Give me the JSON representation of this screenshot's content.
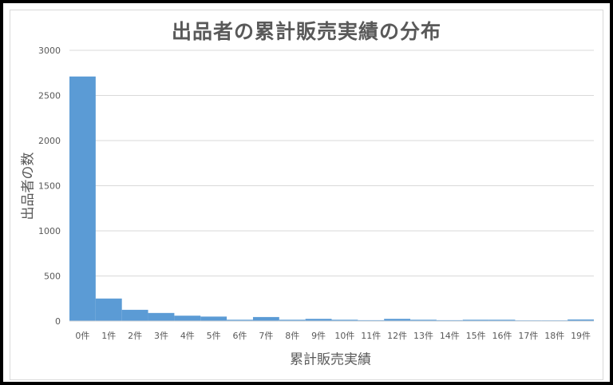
{
  "chart_data": {
    "type": "bar",
    "title": "出品者の累計販売実績の分布",
    "xlabel": "累計販売実績",
    "ylabel": "出品者の数",
    "ylim": [
      0,
      3000
    ],
    "yticks": [
      0,
      500,
      1000,
      1500,
      2000,
      2500,
      3000
    ],
    "categories": [
      "0件",
      "1件",
      "2件",
      "3件",
      "4件",
      "5件",
      "6件",
      "7件",
      "8件",
      "9件",
      "10件",
      "11件",
      "12件",
      "13件",
      "14件",
      "15件",
      "16件",
      "17件",
      "18件",
      "19件"
    ],
    "values": [
      2710,
      250,
      125,
      90,
      60,
      50,
      15,
      45,
      15,
      25,
      15,
      10,
      25,
      15,
      10,
      15,
      15,
      8,
      8,
      18
    ],
    "grid": true,
    "colors": {
      "bar": "#5b9bd5",
      "grid": "#d9d9d9",
      "text": "#595959"
    }
  }
}
